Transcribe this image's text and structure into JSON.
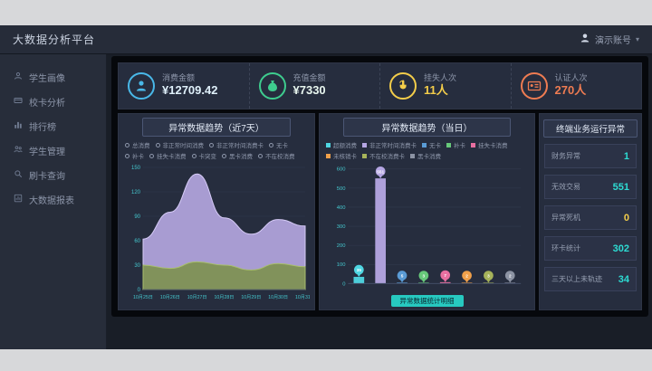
{
  "app": {
    "title": "大数据分析平台"
  },
  "header": {
    "user": "演示账号",
    "caret": "▾"
  },
  "sidebar": {
    "items": [
      {
        "label": "学生画像"
      },
      {
        "label": "校卡分析"
      },
      {
        "label": "排行榜"
      },
      {
        "label": "学生管理"
      },
      {
        "label": "刷卡查询"
      },
      {
        "label": "大数据报表"
      }
    ]
  },
  "kpis": [
    {
      "label": "消费金额",
      "value": "¥12709.42",
      "color": "#49b8e8",
      "value_color": "#dff0fa"
    },
    {
      "label": "充值金额",
      "value": "¥7330",
      "color": "#3ecc8e",
      "value_color": "#e8f6ef"
    },
    {
      "label": "挂失人次",
      "value": "11人",
      "color": "#f3cd4a",
      "value_color": "#f3cd4a"
    },
    {
      "label": "认证人次",
      "value": "270人",
      "color": "#ef7c52",
      "value_color": "#ef7c52"
    }
  ],
  "left_chart": {
    "title": "异常数据趋势（近7天）",
    "legend_rows": [
      [
        "总消费",
        "非正常时间消费",
        "非正常时间消费卡",
        "无卡",
        "补卡"
      ],
      [
        "挂失卡消费",
        "卡突变",
        "黑卡消费",
        "不在校消费"
      ]
    ]
  },
  "right_chart": {
    "title": "异常数据趋势（当日）",
    "legend": [
      {
        "label": "超额消费",
        "color": "#4fd6e2"
      },
      {
        "label": "非正常时间消费卡",
        "color": "#b5a6e3"
      },
      {
        "label": "无卡",
        "color": "#5a9bd5"
      },
      {
        "label": "补卡",
        "color": "#67c97a"
      },
      {
        "label": "挂失卡消费",
        "color": "#e86fa0"
      },
      {
        "label": "未核销卡",
        "color": "#f0a04a"
      },
      {
        "label": "不在校消费卡",
        "color": "#a6b35a"
      },
      {
        "label": "黑卡消费",
        "color": "#8c93a3"
      }
    ],
    "footer": "异常数据统计明细"
  },
  "stats_panel": {
    "title": "终端业务运行异常",
    "rows": [
      {
        "label": "财务异常",
        "value": "1",
        "color": "#2ddcd3"
      },
      {
        "label": "无效交易",
        "value": "551",
        "color": "#2ddcd3"
      },
      {
        "label": "异常死机",
        "value": "0",
        "color": "#f3cd4a"
      },
      {
        "label": "环卡统计",
        "value": "302",
        "color": "#2ddcd3"
      },
      {
        "label": "三天以上未轨迹",
        "value": "34",
        "color": "#2ddcd3"
      }
    ]
  },
  "chart_data": [
    {
      "type": "area",
      "title": "异常数据趋势（近7天）",
      "x": [
        "10月25日",
        "10月26日",
        "10月27日",
        "10月28日",
        "10月29日",
        "10月30日",
        "10月31日"
      ],
      "series": [
        {
          "name": "非正常时间消费",
          "color": "#b3a6de",
          "line": "#d6cbf7",
          "values": [
            62,
            95,
            142,
            88,
            68,
            86,
            78
          ]
        },
        {
          "name": "总消费",
          "color": "#7e9150",
          "line": "#a9bf6d",
          "values": [
            30,
            26,
            34,
            30,
            24,
            32,
            28
          ]
        }
      ],
      "ylim": [
        0,
        150
      ],
      "yticks": [
        0,
        30,
        60,
        90,
        120,
        150
      ],
      "legend_position": "top",
      "grid": true
    },
    {
      "type": "bar",
      "title": "异常数据趋势（当日）",
      "categories": [
        "超额消费",
        "非正常时间消费卡",
        "无卡",
        "补卡",
        "挂失卡消费",
        "未核销卡",
        "不在校消费卡",
        "黑卡消费"
      ],
      "values": [
        35,
        551,
        5,
        3,
        7,
        2,
        3,
        2
      ],
      "colors": [
        "#4fd6e2",
        "#b5a6e3",
        "#5a9bd5",
        "#67c97a",
        "#e86fa0",
        "#f0a04a",
        "#a6b35a",
        "#8c93a3"
      ],
      "ylim": [
        0,
        600
      ],
      "yticks": [
        0,
        100,
        200,
        300,
        400,
        500,
        600
      ],
      "legend_position": "top",
      "grid": true
    }
  ]
}
